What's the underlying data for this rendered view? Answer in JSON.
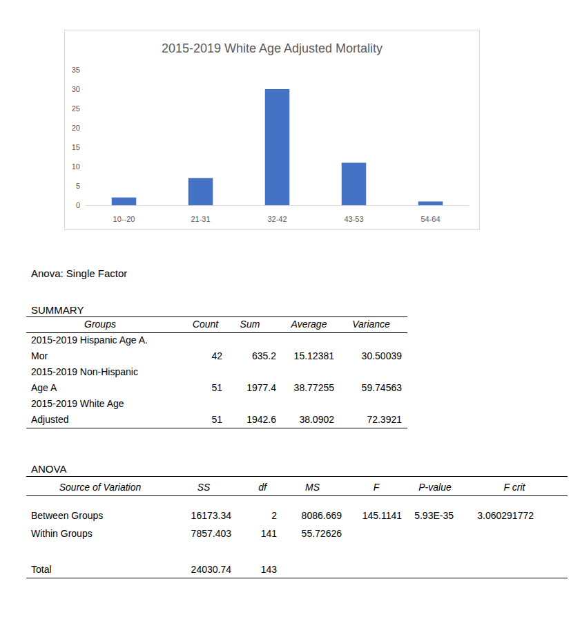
{
  "chart_data": {
    "type": "bar",
    "title": "2015-2019 White Age Adjusted Mortality",
    "categories": [
      "10--20",
      "21-31",
      "32-42",
      "43-53",
      "54-64"
    ],
    "values": [
      2,
      7,
      30,
      11,
      1
    ],
    "color": "#4472c4",
    "ylim": [
      0,
      35
    ],
    "yticks": [
      0,
      5,
      10,
      15,
      20,
      25,
      30,
      35
    ],
    "grid": false
  },
  "document": {
    "heading": "Anova: Single Factor",
    "summary": {
      "title": "SUMMARY",
      "header": [
        "Groups",
        "Count",
        "Sum",
        "Average",
        "Variance"
      ],
      "rows": [
        [
          "2015-2019 Hispanic Age A. Mor",
          42,
          635.2,
          15.12381,
          30.50039
        ],
        [
          "2015-2019 Non-Hispanic Age A",
          51,
          1977.4,
          38.77255,
          59.74563
        ],
        [
          "2015-2019 White Age Adjusted",
          51,
          1942.6,
          38.0902,
          72.3921
        ]
      ]
    },
    "anova": {
      "title": "ANOVA",
      "header": [
        "Source of Variation",
        "SS",
        "df",
        "MS",
        "F",
        "P-value",
        "F crit"
      ],
      "rows": [
        [
          "Between Groups",
          16173.34,
          2,
          8086.669,
          145.1141,
          "5.93E-35",
          3.060291772
        ],
        [
          "Within Groups",
          7857.403,
          141,
          55.72626,
          null,
          null,
          null
        ],
        [
          "Total",
          24030.74,
          143,
          null,
          null,
          null,
          null
        ]
      ]
    }
  }
}
